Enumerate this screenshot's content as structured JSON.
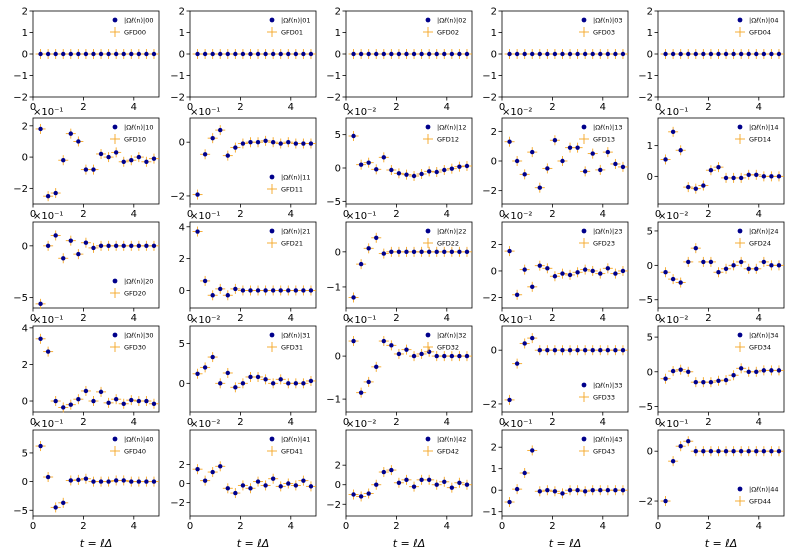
{
  "figure": {
    "xlabel": "t = ℓΔ",
    "xlim": [
      0,
      5
    ],
    "xticks": [
      0,
      2,
      4
    ],
    "colors": {
      "marker": "#00008b",
      "cross": "#f5a623",
      "axes": "#000000"
    },
    "t_values": [
      0.3,
      0.6,
      0.9,
      1.2,
      1.5,
      1.8,
      2.1,
      2.4,
      2.7,
      3.0,
      3.3,
      3.6,
      3.9,
      4.2,
      4.5,
      4.8
    ]
  },
  "chart_data": [
    {
      "type": "scatter",
      "ij": "00",
      "legend": [
        "|Ωℓ(n)|00",
        "GFD00"
      ],
      "multiplier": "",
      "ylim": [
        -2,
        2
      ],
      "yticks": [
        -2,
        -1,
        0,
        1,
        2
      ],
      "legend_loc": "upper right",
      "values": [
        0,
        0,
        0,
        0,
        0,
        0,
        0,
        0,
        0,
        0,
        0,
        0,
        0,
        0,
        0,
        0
      ]
    },
    {
      "type": "scatter",
      "ij": "01",
      "legend": [
        "|Ωℓ(n)|01",
        "GFD01"
      ],
      "multiplier": "",
      "ylim": [
        -2,
        2
      ],
      "yticks": [
        -2,
        -1,
        0,
        1,
        2
      ],
      "legend_loc": "upper right",
      "values": [
        0,
        0,
        0,
        0,
        0,
        0,
        0,
        0,
        0,
        0,
        0,
        0,
        0,
        0,
        0,
        0
      ]
    },
    {
      "type": "scatter",
      "ij": "02",
      "legend": [
        "|Ωℓ(n)|02",
        "GFD02"
      ],
      "multiplier": "",
      "ylim": [
        -2,
        2
      ],
      "yticks": [
        -2,
        -1,
        0,
        1,
        2
      ],
      "legend_loc": "upper right",
      "values": [
        0,
        0,
        0,
        0,
        0,
        0,
        0,
        0,
        0,
        0,
        0,
        0,
        0,
        0,
        0,
        0
      ]
    },
    {
      "type": "scatter",
      "ij": "03",
      "legend": [
        "|Ωℓ(n)|03",
        "GFD03"
      ],
      "multiplier": "",
      "ylim": [
        -2,
        2
      ],
      "yticks": [
        -2,
        -1,
        0,
        1,
        2
      ],
      "legend_loc": "upper right",
      "values": [
        0,
        0,
        0,
        0,
        0,
        0,
        0,
        0,
        0,
        0,
        0,
        0,
        0,
        0,
        0,
        0
      ]
    },
    {
      "type": "scatter",
      "ij": "04",
      "legend": [
        "|Ωℓ(n)|04",
        "GFD04"
      ],
      "multiplier": "",
      "ylim": [
        -2,
        2
      ],
      "yticks": [
        -2,
        -1,
        0,
        1,
        2
      ],
      "legend_loc": "upper right",
      "values": [
        0,
        0,
        0,
        0,
        0,
        0,
        0,
        0,
        0,
        0,
        0,
        0,
        0,
        0,
        0,
        0
      ]
    },
    {
      "type": "scatter",
      "ij": "10",
      "legend": [
        "|Ωℓ(n)|10",
        "GFD10"
      ],
      "multiplier": "×10⁻¹",
      "ylim": [
        -3,
        2.5
      ],
      "yticks": [
        -2,
        0,
        2
      ],
      "legend_loc": "upper right",
      "values": [
        1.8,
        -2.5,
        -2.3,
        -0.2,
        1.5,
        1.0,
        -0.8,
        -0.8,
        0.2,
        0.0,
        0.3,
        -0.3,
        -0.2,
        0.0,
        -0.3,
        -0.1
      ]
    },
    {
      "type": "scatter",
      "ij": "11",
      "legend": [
        "|Ωℓ(n)|11",
        "GFD11"
      ],
      "multiplier": "×10⁻¹",
      "ylim": [
        -2.3,
        0.9
      ],
      "yticks": [
        -2,
        0
      ],
      "legend_loc": "lower right",
      "values": [
        -1.95,
        -0.45,
        0.15,
        0.45,
        -0.5,
        -0.2,
        -0.05,
        0.0,
        0.0,
        0.05,
        0.0,
        -0.05,
        0.0,
        -0.05,
        -0.05,
        -0.05
      ]
    },
    {
      "type": "scatter",
      "ij": "12",
      "legend": [
        "|Ωℓ(n)|12",
        "GFD12"
      ],
      "multiplier": "×10⁻²",
      "ylim": [
        -5.4,
        7.5
      ],
      "yticks": [
        -5,
        0,
        5
      ],
      "legend_loc": "upper right",
      "values": [
        4.8,
        0.5,
        0.8,
        -0.2,
        1.6,
        -0.3,
        -0.8,
        -1.0,
        -1.2,
        -0.9,
        -0.5,
        -0.6,
        -0.3,
        -0.1,
        0.2,
        0.3
      ]
    },
    {
      "type": "scatter",
      "ij": "13",
      "legend": [
        "|Ωℓ(n)|13",
        "GFD13"
      ],
      "multiplier": "×10⁻²",
      "ylim": [
        -2.9,
        2.9
      ],
      "yticks": [
        -2,
        0,
        2
      ],
      "legend_loc": "upper right",
      "values": [
        1.3,
        0.0,
        -0.9,
        0.6,
        -1.8,
        -0.5,
        1.4,
        0.0,
        0.9,
        0.9,
        -0.7,
        0.5,
        -0.6,
        0.6,
        -0.2,
        -0.4
      ]
    },
    {
      "type": "scatter",
      "ij": "14",
      "legend": [
        "|Ωℓ(n)|14",
        "GFD14"
      ],
      "multiplier": "×10⁻¹",
      "ylim": [
        -0.9,
        1.9
      ],
      "yticks": [
        0,
        1
      ],
      "legend_loc": "upper right",
      "values": [
        0.55,
        1.45,
        0.85,
        -0.35,
        -0.4,
        -0.3,
        0.2,
        0.3,
        -0.05,
        -0.05,
        -0.05,
        0.05,
        0.05,
        0.0,
        0.0,
        0.0
      ]
    },
    {
      "type": "scatter",
      "ij": "20",
      "legend": [
        "|Ωℓ(n)|20",
        "GFD20"
      ],
      "multiplier": "×10⁻¹",
      "ylim": [
        -6,
        2.3
      ],
      "yticks": [
        -5,
        0
      ],
      "legend_loc": "lower right",
      "values": [
        -5.6,
        0.0,
        1.0,
        -1.2,
        0.5,
        -0.8,
        0.3,
        -0.2,
        0.0,
        0.0,
        0.0,
        0.0,
        0.0,
        0.0,
        0.0,
        0.0
      ]
    },
    {
      "type": "scatter",
      "ij": "21",
      "legend": [
        "|Ωℓ(n)|21",
        "GFD21"
      ],
      "multiplier": "×10⁻¹",
      "ylim": [
        -1.1,
        4.3
      ],
      "yticks": [
        0,
        2,
        4
      ],
      "legend_loc": "upper right",
      "values": [
        3.7,
        0.6,
        -0.3,
        0.1,
        -0.3,
        0.1,
        0.0,
        0.0,
        0.0,
        0.0,
        0.0,
        0.0,
        0.0,
        0.0,
        0.0,
        0.0
      ]
    },
    {
      "type": "scatter",
      "ij": "22",
      "legend": [
        "|Ωℓ(n)|22",
        "GFD22"
      ],
      "multiplier": "×10⁻¹",
      "ylim": [
        -1.6,
        0.85
      ],
      "yticks": [
        -1,
        0
      ],
      "legend_loc": "upper right",
      "values": [
        -1.3,
        -0.35,
        0.1,
        0.4,
        -0.05,
        0.0,
        0.0,
        0.0,
        0.0,
        0.0,
        0.0,
        0.0,
        0.0,
        0.0,
        0.0,
        0.0
      ]
    },
    {
      "type": "scatter",
      "ij": "23",
      "legend": [
        "|Ωℓ(n)|23",
        "GFD23"
      ],
      "multiplier": "×10⁻²",
      "ylim": [
        -2.8,
        3.7
      ],
      "yticks": [
        -2,
        0,
        2
      ],
      "legend_loc": "upper right",
      "values": [
        1.5,
        -1.8,
        0.1,
        -1.2,
        0.4,
        0.2,
        -0.4,
        -0.2,
        -0.3,
        -0.1,
        0.1,
        0.0,
        -0.2,
        0.2,
        -0.2,
        0.0
      ]
    },
    {
      "type": "scatter",
      "ij": "24",
      "legend": [
        "|Ωℓ(n)|24",
        "GFD24"
      ],
      "multiplier": "×10⁻²",
      "ylim": [
        -6.2,
        6.3
      ],
      "yticks": [
        -5,
        0,
        5
      ],
      "legend_loc": "upper right",
      "values": [
        -1.0,
        -2.0,
        -2.5,
        0.5,
        2.5,
        0.5,
        0.5,
        -1.0,
        -0.5,
        0.0,
        0.5,
        -0.5,
        -0.5,
        0.5,
        0.0,
        0.0
      ]
    },
    {
      "type": "scatter",
      "ij": "30",
      "legend": [
        "|Ωℓ(n)|30",
        "GFD30"
      ],
      "multiplier": "×10⁻¹",
      "ylim": [
        -0.6,
        4.1
      ],
      "yticks": [
        0,
        2,
        4
      ],
      "legend_loc": "upper right",
      "values": [
        3.4,
        2.7,
        0.0,
        -0.35,
        -0.2,
        0.1,
        0.55,
        0.0,
        0.5,
        -0.1,
        0.1,
        -0.15,
        0.05,
        0.0,
        0.0,
        -0.15
      ]
    },
    {
      "type": "scatter",
      "ij": "31",
      "legend": [
        "|Ωℓ(n)|31",
        "GFD31"
      ],
      "multiplier": "×10⁻²",
      "ylim": [
        -3.6,
        7.2
      ],
      "yticks": [
        0,
        5
      ],
      "legend_loc": "upper right",
      "values": [
        1.2,
        2.0,
        3.3,
        0.0,
        1.3,
        -0.5,
        0.0,
        0.8,
        0.8,
        0.5,
        0.0,
        0.5,
        0.0,
        0.0,
        0.0,
        0.3
      ]
    },
    {
      "type": "scatter",
      "ij": "32",
      "legend": [
        "|Ωℓ(n)|32",
        "GFD32"
      ],
      "multiplier": "×10⁻¹",
      "ylim": [
        -1.3,
        0.7
      ],
      "yticks": [
        -1,
        0
      ],
      "legend_loc": "upper right",
      "values": [
        0.35,
        -0.85,
        -0.6,
        -0.25,
        0.35,
        0.25,
        0.05,
        0.15,
        0.0,
        0.05,
        0.1,
        0.0,
        0.0,
        0.0,
        0.0,
        0.0
      ]
    },
    {
      "type": "scatter",
      "ij": "33",
      "legend": [
        "|Ωℓ(n)|33",
        "GFD33"
      ],
      "multiplier": "×10⁻¹",
      "ylim": [
        -2.3,
        0.9
      ],
      "yticks": [
        -2,
        0
      ],
      "legend_loc": "lower right",
      "values": [
        -1.85,
        -0.5,
        0.25,
        0.45,
        0.0,
        0.0,
        0.0,
        0.0,
        0.0,
        0.0,
        0.0,
        0.0,
        0.0,
        0.0,
        0.0,
        0.0
      ]
    },
    {
      "type": "scatter",
      "ij": "34",
      "legend": [
        "|Ωℓ(n)|34",
        "GFD34"
      ],
      "multiplier": "×10⁻²",
      "ylim": [
        -5.8,
        6.6
      ],
      "yticks": [
        -5,
        0,
        5
      ],
      "legend_loc": "upper right",
      "values": [
        -1.0,
        0.1,
        0.3,
        0.0,
        -1.5,
        -1.5,
        -1.5,
        -1.3,
        -1.2,
        -0.5,
        0.5,
        0.0,
        0.0,
        0.2,
        0.2,
        0.2
      ]
    },
    {
      "type": "scatter",
      "ij": "40",
      "legend": [
        "|Ωℓ(n)|40",
        "GFD40"
      ],
      "multiplier": "×10⁻¹",
      "ylim": [
        -6,
        9
      ],
      "yticks": [
        -5,
        0,
        5
      ],
      "legend_loc": "upper right",
      "values": [
        6.2,
        0.8,
        -4.5,
        -3.7,
        0.2,
        0.3,
        0.5,
        0.0,
        0.0,
        0.0,
        0.2,
        0.2,
        0.0,
        0.0,
        0.0,
        0.0
      ]
    },
    {
      "type": "scatter",
      "ij": "41",
      "legend": [
        "|Ωℓ(n)|41",
        "GFD41"
      ],
      "multiplier": "×10⁻²",
      "ylim": [
        -3.4,
        5.6
      ],
      "yticks": [
        -2,
        0,
        2
      ],
      "legend_loc": "upper right",
      "values": [
        1.5,
        0.3,
        1.2,
        1.8,
        -0.5,
        -1.0,
        -0.2,
        -0.5,
        0.2,
        -0.2,
        0.5,
        -0.3,
        0.0,
        -0.2,
        0.3,
        -0.3
      ]
    },
    {
      "type": "scatter",
      "ij": "42",
      "legend": [
        "|Ωℓ(n)|42",
        "GFD42"
      ],
      "multiplier": "×10⁻²",
      "ylim": [
        -3.2,
        5.6
      ],
      "yticks": [
        -2,
        0,
        2
      ],
      "legend_loc": "upper right",
      "values": [
        -1.0,
        -1.2,
        -0.9,
        0.0,
        1.3,
        1.5,
        0.2,
        0.5,
        -0.2,
        0.5,
        0.5,
        0.0,
        0.3,
        -0.3,
        0.2,
        0.0
      ]
    },
    {
      "type": "scatter",
      "ij": "43",
      "legend": [
        "|Ωℓ(n)|43",
        "GFD43"
      ],
      "multiplier": "×10⁻¹",
      "ylim": [
        -1.2,
        2.8
      ],
      "yticks": [
        -1,
        0,
        1,
        2
      ],
      "legend_loc": "upper right",
      "values": [
        -0.55,
        0.05,
        0.8,
        1.85,
        -0.05,
        0.0,
        -0.05,
        -0.15,
        0.0,
        0.0,
        -0.05,
        0.0,
        0.0,
        0.0,
        0.0,
        0.0
      ]
    },
    {
      "type": "scatter",
      "ij": "44",
      "legend": [
        "|Ωℓ(n)|44",
        "GFD44"
      ],
      "multiplier": "×10⁻¹",
      "ylim": [
        -2.6,
        0.85
      ],
      "yticks": [
        -2,
        0
      ],
      "legend_loc": "lower right",
      "values": [
        -2.0,
        -0.4,
        0.2,
        0.4,
        0.0,
        0.0,
        0.0,
        0.0,
        0.0,
        0.0,
        0.0,
        0.0,
        0.0,
        0.0,
        0.0,
        0.0
      ]
    }
  ]
}
